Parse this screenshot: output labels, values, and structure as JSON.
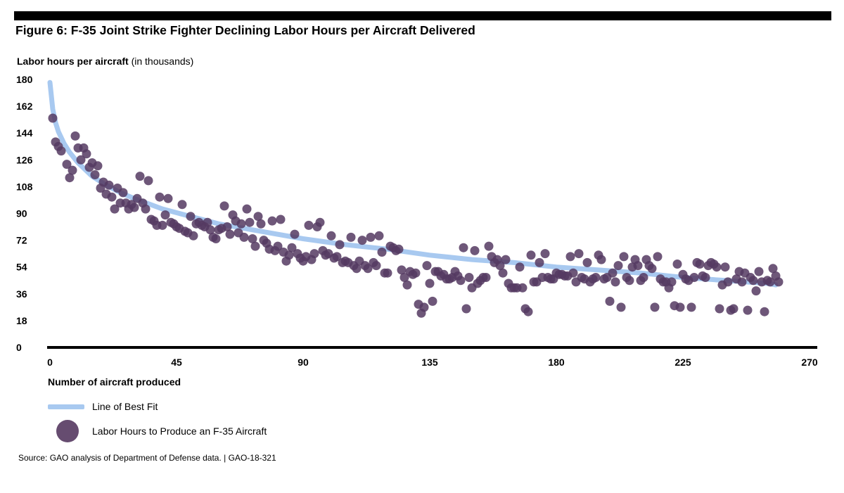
{
  "title": "Figure 6: F-35 Joint Strike Fighter Declining Labor Hours per Aircraft Delivered",
  "y_axis_title_bold": "Labor hours per aircraft",
  "y_axis_title_rest": " (in thousands)",
  "x_axis_title": "Number of aircraft produced",
  "legend": {
    "fit_label": "Line of Best Fit",
    "points_label": "Labor Hours to Produce an F-35 Aircraft"
  },
  "source": "Source: GAO analysis of Department of Defense data. | GAO-18-321",
  "colors": {
    "points": "#553961",
    "fit_line": "#a8c9f0",
    "axis": "#000000"
  },
  "chart_data": {
    "type": "scatter",
    "title": "Figure 6: F-35 Joint Strike Fighter Declining Labor Hours per Aircraft Delivered",
    "xlabel": "Number of aircraft produced",
    "ylabel": "Labor hours per aircraft (in thousands)",
    "xlim": [
      0,
      270
    ],
    "ylim": [
      0,
      180
    ],
    "xticks": [
      0,
      45,
      90,
      135,
      180,
      225,
      270
    ],
    "yticks": [
      0,
      18,
      36,
      54,
      72,
      90,
      108,
      126,
      144,
      162,
      180
    ],
    "grid": false,
    "legend_position": "bottom-left",
    "series": [
      {
        "name": "Labor Hours to Produce an F-35 Aircraft",
        "type": "scatter",
        "points": [
          [
            1,
            154
          ],
          [
            2,
            138
          ],
          [
            3,
            135
          ],
          [
            4,
            132
          ],
          [
            6,
            123
          ],
          [
            7,
            114
          ],
          [
            8,
            119
          ],
          [
            9,
            142
          ],
          [
            10,
            134
          ],
          [
            11,
            126
          ],
          [
            12,
            134
          ],
          [
            13,
            130
          ],
          [
            14,
            121
          ],
          [
            15,
            124
          ],
          [
            16,
            116
          ],
          [
            17,
            122
          ],
          [
            18,
            107
          ],
          [
            19,
            111
          ],
          [
            20,
            103
          ],
          [
            21,
            109
          ],
          [
            22,
            101
          ],
          [
            23,
            93
          ],
          [
            24,
            107
          ],
          [
            25,
            97
          ],
          [
            26,
            104
          ],
          [
            27,
            97
          ],
          [
            28,
            93
          ],
          [
            29,
            96
          ],
          [
            30,
            94
          ],
          [
            31,
            100
          ],
          [
            32,
            115
          ],
          [
            33,
            97
          ],
          [
            34,
            93
          ],
          [
            35,
            112
          ],
          [
            36,
            86
          ],
          [
            37,
            85
          ],
          [
            38,
            82
          ],
          [
            39,
            101
          ],
          [
            40,
            82
          ],
          [
            41,
            89
          ],
          [
            42,
            100
          ],
          [
            43,
            84
          ],
          [
            44,
            83
          ],
          [
            45,
            81
          ],
          [
            46,
            80
          ],
          [
            47,
            96
          ],
          [
            48,
            78
          ],
          [
            49,
            77
          ],
          [
            50,
            88
          ],
          [
            51,
            75
          ],
          [
            52,
            83
          ],
          [
            53,
            84
          ],
          [
            54,
            82
          ],
          [
            55,
            81
          ],
          [
            56,
            84
          ],
          [
            57,
            79
          ],
          [
            58,
            74
          ],
          [
            59,
            73
          ],
          [
            60,
            79
          ],
          [
            61,
            80
          ],
          [
            62,
            95
          ],
          [
            63,
            81
          ],
          [
            64,
            76
          ],
          [
            65,
            89
          ],
          [
            66,
            85
          ],
          [
            67,
            77
          ],
          [
            68,
            83
          ],
          [
            69,
            74
          ],
          [
            70,
            93
          ],
          [
            71,
            84
          ],
          [
            72,
            73
          ],
          [
            73,
            68
          ],
          [
            74,
            88
          ],
          [
            75,
            83
          ],
          [
            76,
            72
          ],
          [
            77,
            70
          ],
          [
            78,
            66
          ],
          [
            79,
            85
          ],
          [
            80,
            65
          ],
          [
            81,
            68
          ],
          [
            82,
            86
          ],
          [
            83,
            64
          ],
          [
            84,
            58
          ],
          [
            85,
            62
          ],
          [
            86,
            67
          ],
          [
            87,
            76
          ],
          [
            88,
            63
          ],
          [
            89,
            60
          ],
          [
            90,
            58
          ],
          [
            91,
            61
          ],
          [
            92,
            82
          ],
          [
            93,
            59
          ],
          [
            94,
            63
          ],
          [
            95,
            81
          ],
          [
            96,
            84
          ],
          [
            97,
            65
          ],
          [
            98,
            62
          ],
          [
            99,
            63
          ],
          [
            100,
            75
          ],
          [
            101,
            60
          ],
          [
            102,
            61
          ],
          [
            103,
            69
          ],
          [
            104,
            57
          ],
          [
            105,
            58
          ],
          [
            106,
            57
          ],
          [
            107,
            74
          ],
          [
            108,
            55
          ],
          [
            109,
            53
          ],
          [
            110,
            58
          ],
          [
            111,
            72
          ],
          [
            112,
            55
          ],
          [
            113,
            53
          ],
          [
            114,
            74
          ],
          [
            115,
            57
          ],
          [
            116,
            55
          ],
          [
            117,
            75
          ],
          [
            118,
            64
          ],
          [
            119,
            50
          ],
          [
            120,
            50
          ],
          [
            121,
            68
          ],
          [
            122,
            67
          ],
          [
            123,
            65
          ],
          [
            124,
            66
          ],
          [
            125,
            52
          ],
          [
            126,
            47
          ],
          [
            127,
            42
          ],
          [
            128,
            51
          ],
          [
            129,
            49
          ],
          [
            130,
            50
          ],
          [
            131,
            29
          ],
          [
            132,
            23
          ],
          [
            133,
            27
          ],
          [
            134,
            55
          ],
          [
            135,
            43
          ],
          [
            136,
            31
          ],
          [
            137,
            51
          ],
          [
            138,
            51
          ],
          [
            139,
            48
          ],
          [
            140,
            49
          ],
          [
            141,
            46
          ],
          [
            142,
            46
          ],
          [
            143,
            47
          ],
          [
            144,
            51
          ],
          [
            145,
            48
          ],
          [
            146,
            45
          ],
          [
            147,
            67
          ],
          [
            148,
            26
          ],
          [
            149,
            47
          ],
          [
            150,
            40
          ],
          [
            151,
            65
          ],
          [
            152,
            43
          ],
          [
            153,
            45
          ],
          [
            154,
            47
          ],
          [
            155,
            47
          ],
          [
            156,
            68
          ],
          [
            157,
            61
          ],
          [
            158,
            57
          ],
          [
            159,
            59
          ],
          [
            160,
            55
          ],
          [
            161,
            50
          ],
          [
            162,
            59
          ],
          [
            163,
            43
          ],
          [
            164,
            40
          ],
          [
            165,
            40
          ],
          [
            166,
            40
          ],
          [
            167,
            54
          ],
          [
            168,
            40
          ],
          [
            169,
            26
          ],
          [
            170,
            24
          ],
          [
            171,
            62
          ],
          [
            172,
            44
          ],
          [
            173,
            44
          ],
          [
            174,
            57
          ],
          [
            175,
            47
          ],
          [
            176,
            63
          ],
          [
            177,
            47
          ],
          [
            178,
            46
          ],
          [
            179,
            46
          ],
          [
            180,
            50
          ],
          [
            181,
            49
          ],
          [
            182,
            49
          ],
          [
            183,
            48
          ],
          [
            184,
            48
          ],
          [
            185,
            61
          ],
          [
            186,
            50
          ],
          [
            187,
            44
          ],
          [
            188,
            63
          ],
          [
            189,
            47
          ],
          [
            190,
            46
          ],
          [
            191,
            57
          ],
          [
            192,
            44
          ],
          [
            193,
            46
          ],
          [
            194,
            47
          ],
          [
            195,
            62
          ],
          [
            196,
            59
          ],
          [
            197,
            46
          ],
          [
            198,
            47
          ],
          [
            199,
            31
          ],
          [
            200,
            50
          ],
          [
            201,
            44
          ],
          [
            202,
            55
          ],
          [
            203,
            27
          ],
          [
            204,
            61
          ],
          [
            205,
            47
          ],
          [
            206,
            45
          ],
          [
            207,
            54
          ],
          [
            208,
            59
          ],
          [
            209,
            55
          ],
          [
            210,
            45
          ],
          [
            211,
            47
          ],
          [
            212,
            59
          ],
          [
            213,
            55
          ],
          [
            214,
            53
          ],
          [
            215,
            27
          ],
          [
            216,
            61
          ],
          [
            217,
            46
          ],
          [
            218,
            44
          ],
          [
            219,
            44
          ],
          [
            220,
            40
          ],
          [
            221,
            44
          ],
          [
            222,
            28
          ],
          [
            223,
            56
          ],
          [
            224,
            27
          ],
          [
            225,
            49
          ],
          [
            226,
            46
          ],
          [
            227,
            45
          ],
          [
            228,
            27
          ],
          [
            229,
            47
          ],
          [
            230,
            57
          ],
          [
            231,
            56
          ],
          [
            232,
            48
          ],
          [
            233,
            47
          ],
          [
            234,
            55
          ],
          [
            235,
            57
          ],
          [
            236,
            56
          ],
          [
            237,
            54
          ],
          [
            238,
            26
          ],
          [
            239,
            42
          ],
          [
            240,
            54
          ],
          [
            241,
            44
          ],
          [
            242,
            25
          ],
          [
            243,
            26
          ],
          [
            244,
            46
          ],
          [
            245,
            51
          ],
          [
            246,
            44
          ],
          [
            247,
            50
          ],
          [
            248,
            25
          ],
          [
            249,
            47
          ],
          [
            250,
            45
          ],
          [
            251,
            38
          ],
          [
            252,
            51
          ],
          [
            253,
            44
          ],
          [
            254,
            24
          ],
          [
            255,
            45
          ],
          [
            256,
            44
          ],
          [
            257,
            53
          ],
          [
            258,
            48
          ],
          [
            259,
            44
          ]
        ]
      },
      {
        "name": "Line of Best Fit",
        "type": "line",
        "x": [
          0,
          1,
          2,
          3,
          5,
          7,
          10,
          15,
          20,
          25,
          30,
          40,
          50,
          60,
          75,
          90,
          105,
          120,
          135,
          150,
          165,
          180,
          195,
          210,
          225,
          240,
          255,
          258
        ],
        "y": [
          178,
          160,
          151,
          145,
          137,
          131,
          124,
          115,
          109,
          104,
          100,
          93,
          88,
          83,
          78,
          73,
          69,
          66,
          62,
          59,
          57,
          54,
          52,
          50,
          47,
          45,
          43,
          42
        ]
      }
    ]
  }
}
